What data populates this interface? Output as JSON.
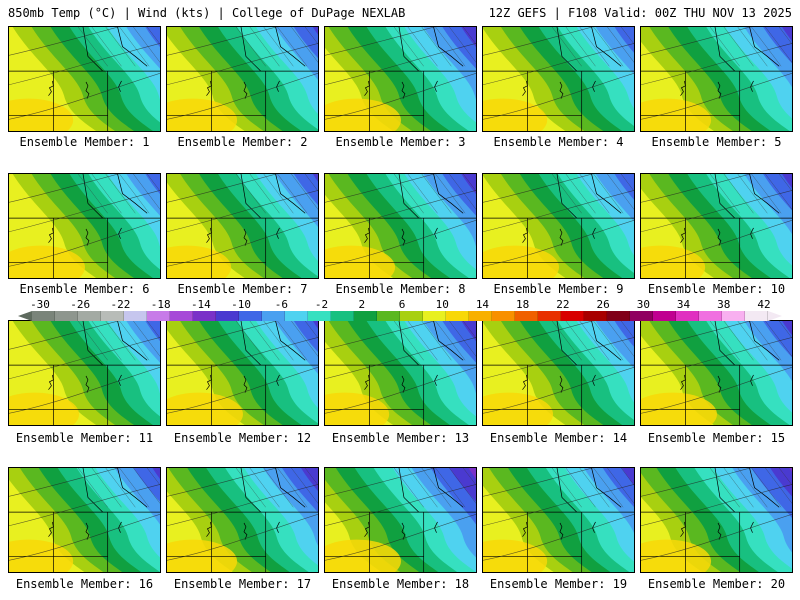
{
  "header": {
    "title_left": "850mb Temp (°C) | Wind (kts) | College of DuPage NEXLAB",
    "title_right": "12Z GEFS | F108 Valid: 00Z THU NOV 13 2025"
  },
  "colorbar": {
    "labels": [
      "-30",
      "-26",
      "-22",
      "-18",
      "-14",
      "-10",
      "-6",
      "-2",
      "2",
      "6",
      "10",
      "14",
      "18",
      "22",
      "26",
      "30",
      "34",
      "38",
      "42"
    ],
    "colors": [
      "#7a847a",
      "#8e968e",
      "#a3aaa3",
      "#b8bcb8",
      "#c6c6ee",
      "#c77be8",
      "#a64ad8",
      "#7a31c8",
      "#4a3ad0",
      "#3f67e6",
      "#4aa0f0",
      "#4fd2f0",
      "#36e0c0",
      "#18c080",
      "#10a040",
      "#5ab820",
      "#a8d010",
      "#e8f020",
      "#f8d808",
      "#f8b000",
      "#f89000",
      "#f06000",
      "#e83000",
      "#d80000",
      "#a80000",
      "#800018",
      "#900060",
      "#c00090",
      "#e030c0",
      "#f070e0",
      "#f8b0f0",
      "#f3e9f3"
    ]
  },
  "members": [
    {
      "label": "Ensemble Member: 1"
    },
    {
      "label": "Ensemble Member: 2"
    },
    {
      "label": "Ensemble Member: 3"
    },
    {
      "label": "Ensemble Member: 4"
    },
    {
      "label": "Ensemble Member: 5"
    },
    {
      "label": "Ensemble Member: 6"
    },
    {
      "label": "Ensemble Member: 7"
    },
    {
      "label": "Ensemble Member: 8"
    },
    {
      "label": "Ensemble Member: 9"
    },
    {
      "label": "Ensemble Member: 10"
    },
    {
      "label": "Ensemble Member: 11"
    },
    {
      "label": "Ensemble Member: 12"
    },
    {
      "label": "Ensemble Member: 13"
    },
    {
      "label": "Ensemble Member: 14"
    },
    {
      "label": "Ensemble Member: 15"
    },
    {
      "label": "Ensemble Member: 16"
    },
    {
      "label": "Ensemble Member: 17"
    },
    {
      "label": "Ensemble Member: 18"
    },
    {
      "label": "Ensemble Member: 19"
    },
    {
      "label": "Ensemble Member: 20"
    }
  ]
}
